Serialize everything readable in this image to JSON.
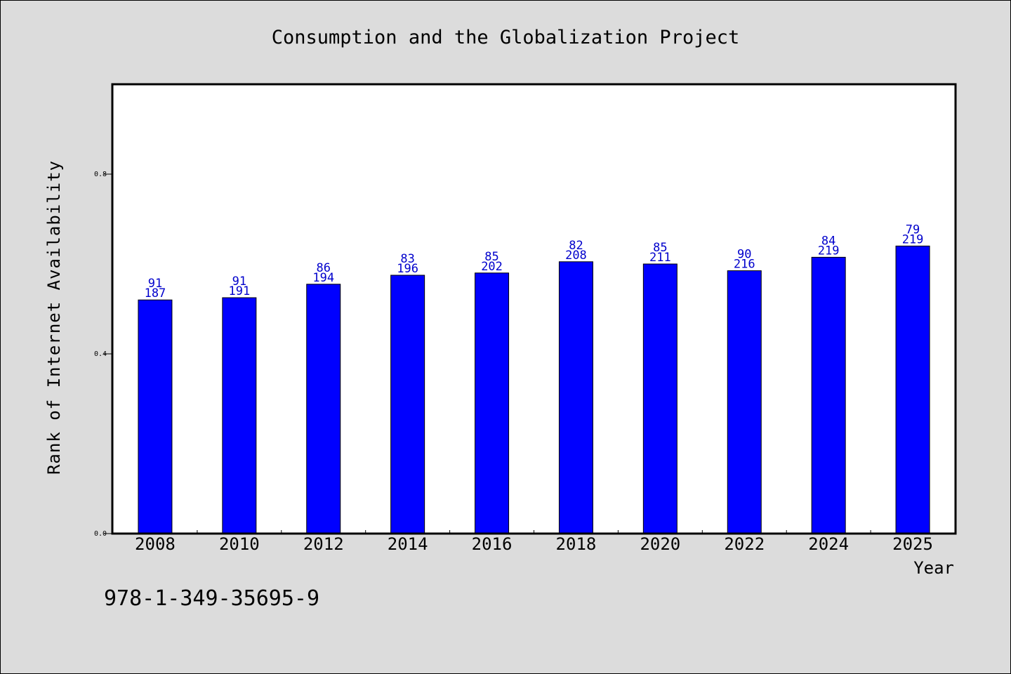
{
  "chart_data": {
    "type": "bar",
    "title": "Consumption and the Globalization Project",
    "xlabel": "Year",
    "ylabel": "Rank of Internet Availability",
    "categories": [
      "2008",
      "2010",
      "2012",
      "2014",
      "2016",
      "2018",
      "2020",
      "2022",
      "2024",
      "2025"
    ],
    "values": [
      0.52,
      0.525,
      0.555,
      0.575,
      0.58,
      0.605,
      0.6,
      0.585,
      0.615,
      0.64
    ],
    "label_top": [
      "91",
      "91",
      "86",
      "83",
      "85",
      "82",
      "85",
      "90",
      "84",
      "79"
    ],
    "label_bottom": [
      "187",
      "191",
      "194",
      "196",
      "202",
      "208",
      "211",
      "216",
      "219",
      "219"
    ],
    "ylim": [
      0,
      1.0
    ],
    "yticks": [
      0.0,
      0.4,
      0.8
    ],
    "ytick_labels": [
      "0.0",
      "0.4",
      "0.8"
    ],
    "bar_color": "#0000ff",
    "label_color": "#0000cc",
    "background": "#dcdcdc",
    "plot_background": "#ffffff",
    "grid": false,
    "legend": false
  },
  "footer": {
    "isbn": "978-1-349-35695-9"
  }
}
